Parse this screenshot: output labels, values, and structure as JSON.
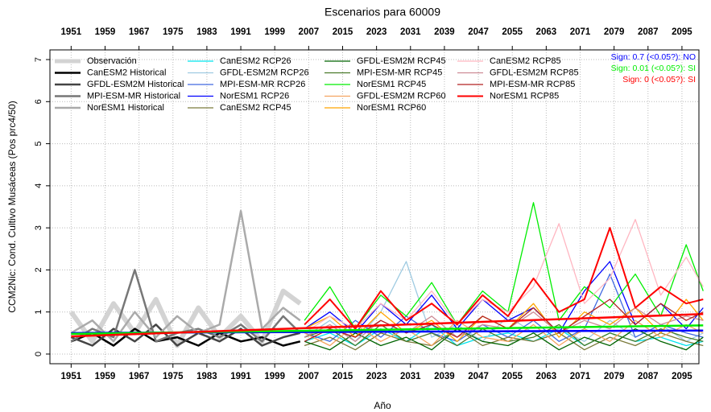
{
  "chart_data": {
    "type": "line",
    "title": "Escenarios  para 60009",
    "x_label": "Año",
    "y_label": "CCM2Nic: Cond. Cultivo Musáceas (Pos prc4/50)",
    "xlim": [
      1946,
      2099
    ],
    "ylim": [
      -0.23,
      7.23
    ],
    "xticks": [
      1951,
      1959,
      1967,
      1975,
      1983,
      1991,
      1999,
      2007,
      2015,
      2023,
      2031,
      2039,
      2047,
      2055,
      2063,
      2071,
      2079,
      2087,
      2095
    ],
    "yticks": [
      0,
      1,
      2,
      3,
      4,
      5,
      6,
      7
    ],
    "grid": true,
    "series": [
      {
        "name": "Observación",
        "color": "#d3d3d3",
        "width": 6,
        "x": [
          1951,
          1956,
          1961,
          1966,
          1971,
          1976,
          1981,
          1986,
          1991,
          1996,
          2001,
          2005
        ],
        "values": [
          1.0,
          0.3,
          1.2,
          0.5,
          1.3,
          0.2,
          1.1,
          0.4,
          0.9,
          0.3,
          1.5,
          1.2
        ]
      },
      {
        "name": "CanESM2 Historical",
        "color": "#000000",
        "width": 2.5,
        "x": [
          1951,
          1956,
          1961,
          1966,
          1971,
          1976,
          1981,
          1986,
          1991,
          1996,
          2001,
          2005
        ],
        "values": [
          0.3,
          0.5,
          0.2,
          0.6,
          0.3,
          0.4,
          0.2,
          0.5,
          0.3,
          0.4,
          0.2,
          0.3
        ]
      },
      {
        "name": "GFDL-ESM2M Historical",
        "color": "#444444",
        "width": 2.5,
        "x": [
          1951,
          1956,
          1961,
          1966,
          1971,
          1976,
          1981,
          1986,
          1991,
          1996,
          2001,
          2005
        ],
        "values": [
          0.4,
          0.2,
          0.6,
          0.3,
          0.7,
          0.2,
          0.5,
          0.3,
          0.6,
          0.2,
          0.4,
          0.5
        ]
      },
      {
        "name": "MPI-ESM-MR Historical",
        "color": "#777777",
        "width": 2.5,
        "x": [
          1951,
          1956,
          1961,
          1966,
          1971,
          1976,
          1981,
          1986,
          1991,
          1996,
          2001,
          2005
        ],
        "values": [
          0.3,
          0.6,
          0.4,
          2.0,
          0.3,
          0.5,
          0.6,
          0.4,
          0.7,
          0.3,
          0.9,
          0.5
        ]
      },
      {
        "name": "NorESM1 Historical",
        "color": "#aaaaaa",
        "width": 2.5,
        "x": [
          1951,
          1956,
          1961,
          1966,
          1971,
          1976,
          1981,
          1986,
          1991,
          1996,
          2001,
          2005
        ],
        "values": [
          0.5,
          0.8,
          0.3,
          1.0,
          0.4,
          0.9,
          0.5,
          0.7,
          3.4,
          0.6,
          1.1,
          0.8
        ]
      },
      {
        "name": "CanESM2 RCP26",
        "color": "#00e5ee",
        "width": 1.3,
        "x": [
          2006,
          2012,
          2018,
          2024,
          2030,
          2036,
          2042,
          2048,
          2054,
          2060,
          2066,
          2072,
          2078,
          2084,
          2090,
          2096,
          2100
        ],
        "values": [
          0.3,
          0.5,
          0.2,
          0.6,
          0.3,
          0.7,
          0.2,
          0.4,
          0.5,
          0.3,
          0.6,
          0.2,
          0.5,
          0.3,
          0.4,
          0.2,
          0.3
        ]
      },
      {
        "name": "GFDL-ESM2M RCP26",
        "color": "#9ecae1",
        "width": 1.3,
        "x": [
          2006,
          2012,
          2018,
          2024,
          2030,
          2036,
          2042,
          2048,
          2054,
          2060,
          2066,
          2072,
          2078,
          2084,
          2090,
          2096,
          2100
        ],
        "values": [
          0.4,
          0.8,
          0.3,
          1.0,
          2.2,
          0.4,
          0.7,
          0.3,
          0.9,
          0.5,
          0.6,
          0.3,
          0.8,
          0.4,
          0.7,
          0.3,
          0.5
        ]
      },
      {
        "name": "MPI-ESM-MR RCP26",
        "color": "#4169e1",
        "width": 1.3,
        "x": [
          2006,
          2012,
          2018,
          2024,
          2030,
          2036,
          2042,
          2048,
          2054,
          2060,
          2066,
          2072,
          2078,
          2084,
          2090,
          2096,
          2100
        ],
        "values": [
          0.5,
          0.3,
          0.8,
          0.4,
          0.9,
          0.5,
          0.3,
          0.7,
          0.4,
          0.8,
          0.3,
          0.6,
          1.9,
          0.4,
          0.7,
          0.5,
          0.4
        ]
      },
      {
        "name": "NorESM1 RCP26",
        "color": "#0000ff",
        "width": 1.3,
        "x": [
          2006,
          2012,
          2018,
          2024,
          2030,
          2036,
          2042,
          2048,
          2054,
          2060,
          2066,
          2072,
          2078,
          2084,
          2090,
          2096,
          2100
        ],
        "values": [
          0.6,
          1.0,
          0.5,
          1.2,
          0.7,
          1.4,
          0.6,
          1.3,
          0.8,
          1.1,
          0.5,
          1.5,
          2.2,
          0.7,
          1.2,
          0.6,
          1.1
        ]
      },
      {
        "name": "CanESM2 RCP45",
        "color": "#7a7a3a",
        "width": 1.3,
        "x": [
          2006,
          2012,
          2018,
          2024,
          2030,
          2036,
          2042,
          2048,
          2054,
          2060,
          2066,
          2072,
          2078,
          2084,
          2090,
          2096,
          2100
        ],
        "values": [
          0.2,
          0.4,
          0.1,
          0.5,
          0.3,
          0.2,
          0.6,
          0.2,
          0.4,
          0.3,
          0.5,
          0.1,
          0.4,
          0.2,
          0.5,
          0.3,
          0.2
        ]
      },
      {
        "name": "GFDL-ESM2M RCP45",
        "color": "#006400",
        "width": 1.3,
        "x": [
          2006,
          2012,
          2018,
          2024,
          2030,
          2036,
          2042,
          2048,
          2054,
          2060,
          2066,
          2072,
          2078,
          2084,
          2090,
          2096,
          2100
        ],
        "values": [
          0.3,
          0.1,
          0.5,
          0.2,
          0.4,
          0.1,
          0.6,
          0.3,
          0.2,
          0.5,
          0.1,
          0.4,
          0.2,
          0.6,
          0.3,
          0.1,
          0.4
        ]
      },
      {
        "name": "MPI-ESM-MR RCP45",
        "color": "#4a7a2a",
        "width": 1.3,
        "x": [
          2006,
          2012,
          2018,
          2024,
          2030,
          2036,
          2042,
          2048,
          2054,
          2060,
          2066,
          2072,
          2078,
          2084,
          2090,
          2096,
          2100
        ],
        "values": [
          0.4,
          0.6,
          0.2,
          0.7,
          0.3,
          0.5,
          0.2,
          0.6,
          0.3,
          0.4,
          0.7,
          0.2,
          0.5,
          0.3,
          0.6,
          0.4,
          0.3
        ]
      },
      {
        "name": "NorESM1 RCP45",
        "color": "#00ee00",
        "width": 1.3,
        "x": [
          2006,
          2012,
          2018,
          2024,
          2030,
          2036,
          2042,
          2048,
          2054,
          2060,
          2066,
          2072,
          2078,
          2084,
          2090,
          2096,
          2100
        ],
        "values": [
          0.8,
          1.6,
          0.6,
          1.4,
          0.9,
          1.7,
          0.7,
          1.5,
          1.0,
          3.6,
          0.8,
          1.6,
          1.1,
          1.9,
          0.9,
          2.6,
          1.5
        ]
      },
      {
        "name": "GFDL-ESM2M RCP60",
        "color": "#f4a460",
        "width": 1.3,
        "x": [
          2006,
          2012,
          2018,
          2024,
          2030,
          2036,
          2042,
          2048,
          2054,
          2060,
          2066,
          2072,
          2078,
          2084,
          2090,
          2096,
          2100
        ],
        "values": [
          0.5,
          0.2,
          0.7,
          0.3,
          0.6,
          0.2,
          0.8,
          0.4,
          0.3,
          0.7,
          0.2,
          0.6,
          0.3,
          0.8,
          0.4,
          0.7,
          0.5
        ]
      },
      {
        "name": "NorESM1 RCP60",
        "color": "#ffa500",
        "width": 1.3,
        "x": [
          2006,
          2012,
          2018,
          2024,
          2030,
          2036,
          2042,
          2048,
          2054,
          2060,
          2066,
          2072,
          2078,
          2084,
          2090,
          2096,
          2100
        ],
        "values": [
          0.6,
          0.9,
          0.4,
          1.0,
          0.5,
          0.8,
          0.3,
          0.9,
          0.6,
          1.2,
          0.4,
          1.0,
          0.7,
          1.1,
          0.5,
          1.3,
          0.8
        ]
      },
      {
        "name": "CanESM2 RCP85",
        "color": "#ffb6c1",
        "width": 1.3,
        "x": [
          2006,
          2012,
          2018,
          2024,
          2030,
          2036,
          2042,
          2048,
          2054,
          2060,
          2066,
          2072,
          2078,
          2084,
          2090,
          2096,
          2100
        ],
        "values": [
          0.5,
          0.9,
          0.6,
          1.2,
          0.8,
          1.5,
          0.7,
          1.3,
          1.0,
          1.6,
          3.1,
          1.2,
          1.8,
          3.2,
          1.4,
          2.3,
          1.6
        ]
      },
      {
        "name": "GFDL-ESM2M RCP85",
        "color": "#cd8c95",
        "width": 1.3,
        "x": [
          2006,
          2012,
          2018,
          2024,
          2030,
          2036,
          2042,
          2048,
          2054,
          2060,
          2066,
          2072,
          2078,
          2084,
          2090,
          2096,
          2100
        ],
        "values": [
          0.4,
          0.7,
          0.3,
          0.8,
          0.5,
          0.9,
          0.4,
          0.7,
          0.6,
          1.0,
          0.5,
          0.8,
          0.6,
          1.1,
          0.7,
          0.9,
          0.8
        ]
      },
      {
        "name": "MPI-ESM-MR RCP85",
        "color": "#b22222",
        "width": 1.3,
        "x": [
          2006,
          2012,
          2018,
          2024,
          2030,
          2036,
          2042,
          2048,
          2054,
          2060,
          2066,
          2072,
          2078,
          2084,
          2090,
          2096,
          2100
        ],
        "values": [
          0.3,
          0.6,
          0.4,
          0.8,
          0.5,
          0.7,
          0.4,
          0.9,
          0.6,
          1.1,
          0.5,
          0.9,
          1.3,
          0.7,
          1.2,
          0.8,
          1.0
        ]
      },
      {
        "name": "NorESM1 RCP85",
        "color": "#ff0000",
        "width": 2,
        "x": [
          2006,
          2012,
          2018,
          2024,
          2030,
          2036,
          2042,
          2048,
          2054,
          2060,
          2066,
          2072,
          2078,
          2084,
          2090,
          2096,
          2100
        ],
        "values": [
          0.7,
          1.3,
          0.6,
          1.5,
          0.8,
          1.2,
          0.7,
          1.4,
          0.9,
          1.8,
          1.0,
          1.3,
          3.0,
          1.1,
          1.6,
          1.2,
          1.3
        ]
      }
    ],
    "trend_lines": [
      {
        "color": "#0000ff",
        "x": [
          1951,
          2100
        ],
        "values": [
          0.5,
          0.56
        ]
      },
      {
        "color": "#00ee00",
        "x": [
          1951,
          2100
        ],
        "values": [
          0.48,
          0.68
        ]
      },
      {
        "color": "#ff0000",
        "x": [
          1951,
          2100
        ],
        "values": [
          0.42,
          0.95
        ]
      }
    ],
    "annotations": [
      {
        "text": "Sign: 0.7  (<0.05?):  NO",
        "color": "#0000ff"
      },
      {
        "text": "Sign: 0.01  (<0.05?):  SI",
        "color": "#00ee00"
      },
      {
        "text": "Sign: 0  (<0.05?):  SI",
        "color": "#ff0000"
      }
    ]
  }
}
